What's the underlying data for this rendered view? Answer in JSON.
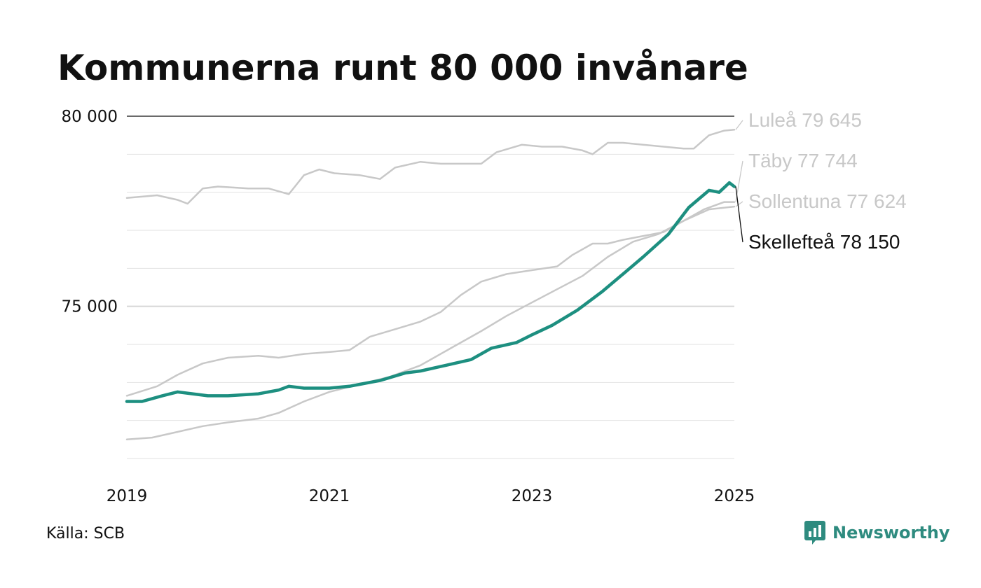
{
  "title": "Kommunerna runt 80 000 invånare",
  "source": "Källa: SCB",
  "brand": {
    "name": "Newsworthy",
    "icon": "newsworthy-chart-icon",
    "color": "#2e8b7f"
  },
  "chart_data": {
    "type": "line",
    "title": "Kommunerna runt 80 000 invånare",
    "xlabel": "",
    "ylabel": "",
    "xlim": [
      2019,
      2025
    ],
    "ylim": [
      71000,
      80000
    ],
    "x_ticks": [
      2019,
      2021,
      2023,
      2025
    ],
    "x_tick_labels": [
      "2019",
      "2021",
      "2023",
      "2025"
    ],
    "y_ticks": [
      75000,
      80000
    ],
    "y_tick_labels": [
      "75 000",
      "80 000"
    ],
    "grid": true,
    "legend": "end-labels-right",
    "series": [
      {
        "name": "Luleå",
        "end_label": "Luleå 79 645",
        "color": "#c8c8c8",
        "highlight": false,
        "points": [
          [
            2019.0,
            77850
          ],
          [
            2019.3,
            77920
          ],
          [
            2019.5,
            77800
          ],
          [
            2019.6,
            77700
          ],
          [
            2019.75,
            78100
          ],
          [
            2019.9,
            78150
          ],
          [
            2020.2,
            78100
          ],
          [
            2020.4,
            78100
          ],
          [
            2020.6,
            77950
          ],
          [
            2020.75,
            78450
          ],
          [
            2020.9,
            78600
          ],
          [
            2021.05,
            78500
          ],
          [
            2021.3,
            78450
          ],
          [
            2021.5,
            78350
          ],
          [
            2021.65,
            78650
          ],
          [
            2021.9,
            78800
          ],
          [
            2022.1,
            78750
          ],
          [
            2022.3,
            78750
          ],
          [
            2022.5,
            78750
          ],
          [
            2022.65,
            79050
          ],
          [
            2022.9,
            79250
          ],
          [
            2023.1,
            79200
          ],
          [
            2023.3,
            79200
          ],
          [
            2023.5,
            79100
          ],
          [
            2023.6,
            79000
          ],
          [
            2023.75,
            79300
          ],
          [
            2023.9,
            79300
          ],
          [
            2024.1,
            79250
          ],
          [
            2024.3,
            79200
          ],
          [
            2024.5,
            79150
          ],
          [
            2024.6,
            79150
          ],
          [
            2024.75,
            79500
          ],
          [
            2024.9,
            79620
          ],
          [
            2025.0,
            79645
          ]
        ]
      },
      {
        "name": "Täby",
        "end_label": "Täby 77 744",
        "color": "#c8c8c8",
        "highlight": false,
        "points": [
          [
            2019.0,
            72650
          ],
          [
            2019.3,
            72900
          ],
          [
            2019.5,
            73200
          ],
          [
            2019.75,
            73500
          ],
          [
            2020.0,
            73650
          ],
          [
            2020.3,
            73700
          ],
          [
            2020.5,
            73650
          ],
          [
            2020.75,
            73750
          ],
          [
            2021.0,
            73800
          ],
          [
            2021.2,
            73850
          ],
          [
            2021.4,
            74200
          ],
          [
            2021.65,
            74400
          ],
          [
            2021.9,
            74600
          ],
          [
            2022.1,
            74850
          ],
          [
            2022.3,
            75300
          ],
          [
            2022.5,
            75650
          ],
          [
            2022.75,
            75850
          ],
          [
            2023.0,
            75950
          ],
          [
            2023.25,
            76050
          ],
          [
            2023.4,
            76350
          ],
          [
            2023.6,
            76650
          ],
          [
            2023.75,
            76650
          ],
          [
            2023.9,
            76750
          ],
          [
            2024.1,
            76850
          ],
          [
            2024.3,
            76950
          ],
          [
            2024.5,
            77250
          ],
          [
            2024.7,
            77550
          ],
          [
            2024.9,
            77744
          ],
          [
            2025.0,
            77744
          ]
        ]
      },
      {
        "name": "Sollentuna",
        "end_label": "Sollentuna 77 624",
        "color": "#c8c8c8",
        "highlight": false,
        "points": [
          [
            2019.0,
            71500
          ],
          [
            2019.25,
            71550
          ],
          [
            2019.5,
            71700
          ],
          [
            2019.75,
            71850
          ],
          [
            2020.0,
            71950
          ],
          [
            2020.3,
            72050
          ],
          [
            2020.5,
            72200
          ],
          [
            2020.75,
            72500
          ],
          [
            2021.0,
            72750
          ],
          [
            2021.3,
            72950
          ],
          [
            2021.6,
            73150
          ],
          [
            2021.9,
            73450
          ],
          [
            2022.2,
            73900
          ],
          [
            2022.5,
            74350
          ],
          [
            2022.75,
            74750
          ],
          [
            2023.0,
            75100
          ],
          [
            2023.25,
            75450
          ],
          [
            2023.5,
            75800
          ],
          [
            2023.75,
            76300
          ],
          [
            2024.0,
            76700
          ],
          [
            2024.25,
            76900
          ],
          [
            2024.5,
            77250
          ],
          [
            2024.75,
            77550
          ],
          [
            2025.0,
            77624
          ]
        ]
      },
      {
        "name": "Skellefteå",
        "end_label": "Skellefteå 78 150",
        "color": "#1d8f80",
        "highlight": true,
        "points": [
          [
            2019.0,
            72500
          ],
          [
            2019.15,
            72500
          ],
          [
            2019.35,
            72650
          ],
          [
            2019.5,
            72750
          ],
          [
            2019.65,
            72700
          ],
          [
            2019.8,
            72650
          ],
          [
            2020.0,
            72650
          ],
          [
            2020.3,
            72700
          ],
          [
            2020.5,
            72800
          ],
          [
            2020.6,
            72900
          ],
          [
            2020.75,
            72850
          ],
          [
            2021.0,
            72850
          ],
          [
            2021.2,
            72900
          ],
          [
            2021.5,
            73050
          ],
          [
            2021.75,
            73250
          ],
          [
            2021.9,
            73300
          ],
          [
            2022.15,
            73450
          ],
          [
            2022.4,
            73600
          ],
          [
            2022.6,
            73900
          ],
          [
            2022.85,
            74050
          ],
          [
            2023.0,
            74250
          ],
          [
            2023.2,
            74500
          ],
          [
            2023.45,
            74900
          ],
          [
            2023.7,
            75400
          ],
          [
            2023.9,
            75850
          ],
          [
            2024.1,
            76300
          ],
          [
            2024.35,
            76900
          ],
          [
            2024.55,
            77600
          ],
          [
            2024.75,
            78050
          ],
          [
            2024.85,
            78000
          ],
          [
            2024.95,
            78250
          ],
          [
            2025.0,
            78150
          ]
        ]
      }
    ]
  }
}
